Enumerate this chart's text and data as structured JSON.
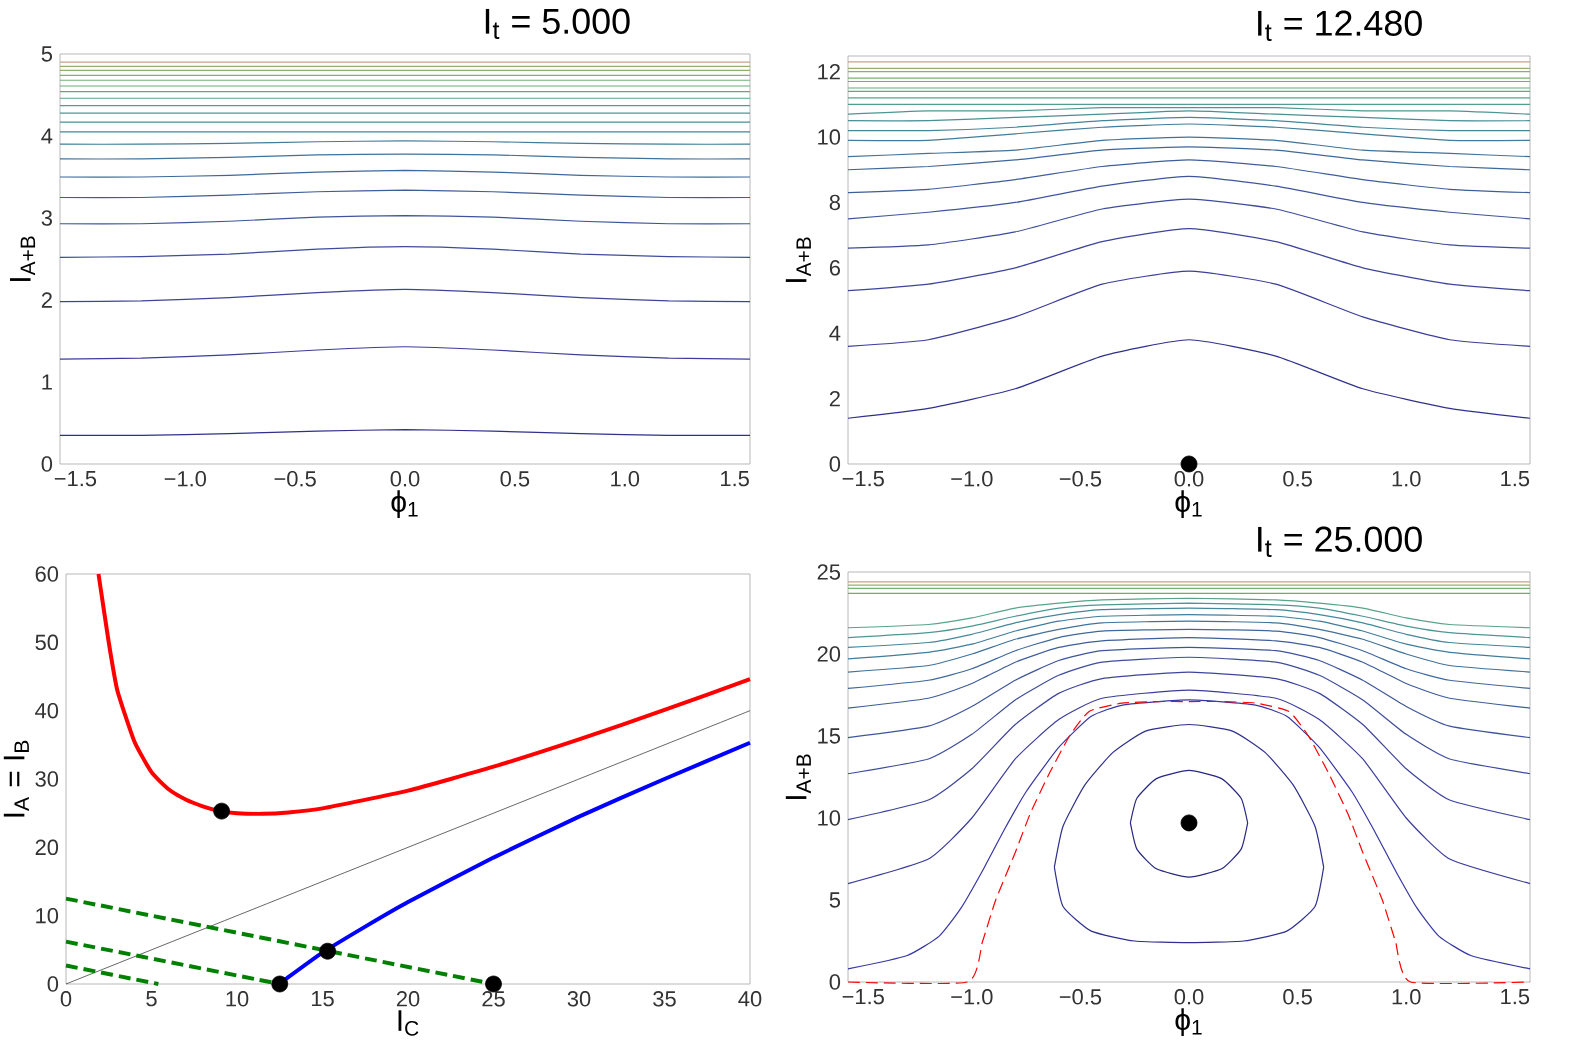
{
  "chart_data": [
    {
      "type": "line",
      "title": "I$_{t}$ = 5.000",
      "xlabel": "ϕ$_{1}$",
      "ylabel": "I$_{A+B}$",
      "xlim": [
        -1.57,
        1.57
      ],
      "ylim": [
        0,
        5
      ],
      "xticks": [
        {
          "value": -1.5,
          "label": "−1.5"
        },
        {
          "value": -1.0,
          "label": "−1.0"
        },
        {
          "value": -0.5,
          "label": "−0.5"
        },
        {
          "value": 0,
          "label": "0.0"
        },
        {
          "value": 0.5,
          "label": "0.5"
        },
        {
          "value": 1.0,
          "label": "1.0"
        },
        {
          "value": 1.5,
          "label": "1.5"
        }
      ],
      "yticks": [
        0,
        1,
        2,
        3,
        4,
        5
      ],
      "x": [
        -1.57,
        -1.2,
        -0.8,
        -0.4,
        0,
        0.4,
        0.8,
        1.2,
        1.57
      ],
      "series": [
        {
          "color": "#30308c",
          "values": [
            0.35,
            0.35,
            0.37,
            0.4,
            0.42,
            0.4,
            0.37,
            0.35,
            0.35
          ]
        },
        {
          "color": "#3c3c9a",
          "values": [
            1.28,
            1.29,
            1.33,
            1.39,
            1.43,
            1.39,
            1.33,
            1.29,
            1.28
          ]
        },
        {
          "color": "#3d449a",
          "values": [
            1.98,
            1.99,
            2.03,
            2.09,
            2.13,
            2.09,
            2.03,
            1.99,
            1.98
          ]
        },
        {
          "color": "#3d4c9a",
          "values": [
            2.52,
            2.53,
            2.56,
            2.62,
            2.65,
            2.62,
            2.56,
            2.53,
            2.52
          ]
        },
        {
          "color": "#3e559a",
          "values": [
            2.93,
            2.93,
            2.96,
            3.01,
            3.03,
            3.01,
            2.96,
            2.93,
            2.93
          ]
        },
        {
          "color": "#3e5e9a",
          "values": [
            3.25,
            3.25,
            3.28,
            3.32,
            3.34,
            3.32,
            3.28,
            3.25,
            3.25
          ]
        },
        {
          "color": "#3f689a",
          "values": [
            3.5,
            3.5,
            3.52,
            3.56,
            3.58,
            3.56,
            3.52,
            3.5,
            3.5
          ]
        },
        {
          "color": "#40729a",
          "values": [
            3.72,
            3.72,
            3.74,
            3.77,
            3.78,
            3.77,
            3.74,
            3.72,
            3.72
          ]
        },
        {
          "color": "#427c9a",
          "values": [
            3.9,
            3.9,
            3.91,
            3.93,
            3.94,
            3.93,
            3.91,
            3.9,
            3.9
          ]
        },
        {
          "color": "#458699",
          "x": [
            -1.57,
            1.57
          ],
          "values": [
            4.05,
            4.05
          ]
        },
        {
          "color": "#488f97",
          "x": [
            -1.57,
            1.57
          ],
          "values": [
            4.17,
            4.17
          ]
        },
        {
          "color": "#4c9794",
          "x": [
            -1.57,
            1.57
          ],
          "values": [
            4.28,
            4.28
          ]
        },
        {
          "color": "#519e8f",
          "x": [
            -1.57,
            1.57
          ],
          "values": [
            4.37,
            4.37
          ]
        },
        {
          "color": "#57a489",
          "x": [
            -1.57,
            1.57
          ],
          "values": [
            4.46,
            4.46
          ]
        },
        {
          "color": "#5ea982",
          "x": [
            -1.57,
            1.57
          ],
          "values": [
            4.54,
            4.54
          ]
        },
        {
          "color": "#66ad7b",
          "x": [
            -1.57,
            1.57
          ],
          "values": [
            4.61,
            4.61
          ]
        },
        {
          "color": "#70b075",
          "x": [
            -1.57,
            1.57
          ],
          "values": [
            4.68,
            4.68
          ]
        },
        {
          "color": "#7cb170",
          "x": [
            -1.57,
            1.57
          ],
          "values": [
            4.74,
            4.74
          ]
        },
        {
          "color": "#8ab06e",
          "x": [
            -1.57,
            1.57
          ],
          "values": [
            4.8,
            4.8
          ]
        },
        {
          "color": "#9cad70",
          "x": [
            -1.57,
            1.57
          ],
          "values": [
            4.85,
            4.85
          ]
        },
        {
          "color": "#c8a288",
          "x": [
            -1.57,
            1.57
          ],
          "values": [
            4.9,
            4.9
          ]
        }
      ]
    },
    {
      "type": "line",
      "title": "I$_{t}$ = 12.480",
      "xlabel": "ϕ$_{1}$",
      "ylabel": "I$_{A+B}$",
      "xlim": [
        -1.57,
        1.57
      ],
      "ylim": [
        0,
        12.48
      ],
      "xticks": [
        {
          "value": -1.5,
          "label": "−1.5"
        },
        {
          "value": -1.0,
          "label": "−1.0"
        },
        {
          "value": -0.5,
          "label": "−0.5"
        },
        {
          "value": 0,
          "label": "0.0"
        },
        {
          "value": 0.5,
          "label": "0.5"
        },
        {
          "value": 1.0,
          "label": "1.0"
        },
        {
          "value": 1.5,
          "label": "1.5"
        }
      ],
      "yticks": [
        0,
        2,
        4,
        6,
        8,
        10,
        12
      ],
      "x": [
        -1.57,
        -1.2,
        -0.8,
        -0.4,
        0,
        0.4,
        0.8,
        1.2,
        1.57
      ],
      "series": [
        {
          "color": "#30308c",
          "values": [
            1.4,
            1.7,
            2.3,
            3.3,
            3.8,
            3.3,
            2.3,
            1.7,
            1.4
          ]
        },
        {
          "color": "#3c3c9a",
          "values": [
            3.6,
            3.8,
            4.5,
            5.5,
            5.9,
            5.5,
            4.5,
            3.8,
            3.6
          ]
        },
        {
          "color": "#3d449a",
          "values": [
            5.3,
            5.5,
            6.0,
            6.8,
            7.2,
            6.8,
            6.0,
            5.5,
            5.3
          ]
        },
        {
          "color": "#3d4c9a",
          "values": [
            6.6,
            6.7,
            7.1,
            7.8,
            8.1,
            7.8,
            7.1,
            6.7,
            6.6
          ]
        },
        {
          "color": "#3e559a",
          "values": [
            7.5,
            7.7,
            8.0,
            8.5,
            8.8,
            8.5,
            8.0,
            7.7,
            7.5
          ]
        },
        {
          "color": "#3e5e9a",
          "values": [
            8.3,
            8.4,
            8.7,
            9.1,
            9.3,
            9.1,
            8.7,
            8.4,
            8.3
          ]
        },
        {
          "color": "#3f689a",
          "values": [
            9.0,
            9.1,
            9.3,
            9.6,
            9.7,
            9.6,
            9.3,
            9.1,
            9.0
          ]
        },
        {
          "color": "#40729a",
          "values": [
            9.4,
            9.5,
            9.6,
            9.9,
            10.0,
            9.9,
            9.6,
            9.5,
            9.4
          ]
        },
        {
          "color": "#427c9a",
          "values": [
            9.9,
            9.9,
            10.1,
            10.3,
            10.4,
            10.3,
            10.1,
            9.9,
            9.9
          ]
        },
        {
          "color": "#458699",
          "values": [
            10.2,
            10.2,
            10.3,
            10.5,
            10.6,
            10.5,
            10.3,
            10.2,
            10.2
          ]
        },
        {
          "color": "#488f97",
          "values": [
            10.5,
            10.5,
            10.6,
            10.7,
            10.8,
            10.7,
            10.6,
            10.5,
            10.5
          ]
        },
        {
          "color": "#4c9794",
          "values": [
            10.7,
            10.8,
            10.8,
            10.9,
            10.9,
            10.9,
            10.8,
            10.8,
            10.7
          ]
        },
        {
          "color": "#519e8f",
          "x": [
            -1.57,
            1.57
          ],
          "values": [
            11.0,
            11.0
          ]
        },
        {
          "color": "#57a489",
          "x": [
            -1.57,
            1.57
          ],
          "values": [
            11.2,
            11.2
          ]
        },
        {
          "color": "#5ea982",
          "x": [
            -1.57,
            1.57
          ],
          "values": [
            11.4,
            11.4
          ]
        },
        {
          "color": "#66ad7b",
          "x": [
            -1.57,
            1.57
          ],
          "values": [
            11.5,
            11.5
          ]
        },
        {
          "color": "#70b075",
          "x": [
            -1.57,
            1.57
          ],
          "values": [
            11.7,
            11.7
          ]
        },
        {
          "color": "#7cb170",
          "x": [
            -1.57,
            1.57
          ],
          "values": [
            11.8,
            11.8
          ]
        },
        {
          "color": "#8ab06e",
          "x": [
            -1.57,
            1.57
          ],
          "values": [
            12.0,
            12.0
          ]
        },
        {
          "color": "#9cad70",
          "x": [
            -1.57,
            1.57
          ],
          "values": [
            12.1,
            12.1
          ]
        },
        {
          "color": "#c8a288",
          "x": [
            -1.57,
            1.57
          ],
          "values": [
            12.3,
            12.3
          ]
        },
        {
          "type": "scatter",
          "marker": "circle",
          "color": "#000000",
          "x": [
            0
          ],
          "values": [
            0
          ]
        }
      ]
    },
    {
      "type": "line",
      "xlabel": "I$_{C}$",
      "ylabel": "I$_{A}$ = I$_{B}$",
      "xlim": [
        0,
        40
      ],
      "ylim": [
        0,
        60
      ],
      "xticks": [
        0,
        5,
        10,
        15,
        20,
        25,
        30,
        35,
        40
      ],
      "yticks": [
        0,
        10,
        20,
        30,
        40,
        50,
        60
      ],
      "series": [
        {
          "color": "#ff0000",
          "x": [
            1.9,
            2.5,
            3,
            4,
            5,
            6,
            7,
            8,
            9,
            10,
            11.5,
            13,
            15,
            20,
            25,
            30,
            35,
            40
          ],
          "values": [
            60,
            50,
            43,
            35.5,
            31,
            28.5,
            27,
            26,
            25.3,
            25,
            24.9,
            25.1,
            25.7,
            28.3,
            31.8,
            35.8,
            40.1,
            44.6
          ]
        },
        {
          "color": "#0000ff",
          "x": [
            12.5,
            13,
            15,
            17.5,
            20,
            25,
            30,
            35,
            40
          ],
          "values": [
            0,
            1,
            4.6,
            8.4,
            12,
            18.5,
            24.5,
            30,
            35.3
          ]
        },
        {
          "color": "#000000",
          "x": [
            0,
            40
          ],
          "values": [
            0,
            40
          ]
        },
        {
          "color": "#008000",
          "line_style": "dashed",
          "x": [
            0,
            25
          ],
          "values": [
            12.5,
            0
          ]
        },
        {
          "color": "#008000",
          "line_style": "dashed",
          "x": [
            0,
            12.5
          ],
          "values": [
            6.2,
            0
          ]
        },
        {
          "color": "#008000",
          "line_style": "dashed",
          "x": [
            0,
            5.4
          ],
          "values": [
            2.7,
            0
          ]
        },
        {
          "type": "scatter",
          "marker": "circle",
          "color": "#000000",
          "x": [
            9.1,
            15.3,
            12.5,
            25
          ],
          "values": [
            25.3,
            4.8,
            0,
            0
          ]
        }
      ]
    },
    {
      "type": "line",
      "title": "I$_{t}$ = 25.000",
      "xlabel": "ϕ$_{1}$",
      "ylabel": "I$_{A+B}$",
      "xlim": [
        -1.57,
        1.57
      ],
      "ylim": [
        0,
        25
      ],
      "xticks": [
        {
          "value": -1.5,
          "label": "−1.5"
        },
        {
          "value": -1.0,
          "label": "−1.0"
        },
        {
          "value": -0.5,
          "label": "−0.5"
        },
        {
          "value": 0,
          "label": "0.0"
        },
        {
          "value": 0.5,
          "label": "0.5"
        },
        {
          "value": 1.0,
          "label": "1.0"
        },
        {
          "value": 1.5,
          "label": "1.5"
        }
      ],
      "yticks": [
        0,
        5,
        10,
        15,
        20,
        25
      ],
      "x": [
        -1.57,
        -1.2,
        -1.0,
        -0.8,
        -0.6,
        -0.4,
        0,
        0.4,
        0.6,
        0.8,
        1.0,
        1.2,
        1.57
      ],
      "series": [
        {
          "color": "#26267e",
          "x": [
            -0.27,
            -0.24,
            -0.15,
            0,
            0.15,
            0.24,
            0.27
          ],
          "values": [
            9.7,
            11.2,
            12.4,
            12.9,
            12.4,
            11.2,
            9.7
          ]
        },
        {
          "color": "#27277f",
          "x": [
            -0.27,
            -0.24,
            -0.15,
            0,
            0.15,
            0.24,
            0.27
          ],
          "values": [
            9.7,
            8.1,
            6.9,
            6.4,
            6.9,
            8.1,
            9.7
          ]
        },
        {
          "color": "#2e2e8c",
          "x": [
            -0.62,
            -0.58,
            -0.48,
            -0.35,
            -0.2,
            0,
            0.2,
            0.35,
            0.48,
            0.58,
            0.62
          ],
          "values": [
            7,
            9.5,
            12,
            14,
            15.3,
            15.7,
            15.3,
            14,
            12,
            9.5,
            7
          ]
        },
        {
          "color": "#2f2f8d",
          "x": [
            -0.62,
            -0.58,
            -0.45,
            -0.25,
            0,
            0.25,
            0.45,
            0.58,
            0.62
          ],
          "values": [
            7,
            4.6,
            3.1,
            2.5,
            2.4,
            2.5,
            3.1,
            4.6,
            7
          ]
        },
        {
          "color": "#3636a4",
          "x": [
            -1.57,
            -1.3,
            -1.15,
            -1.05,
            -0.95,
            -0.85,
            -0.75,
            -0.6,
            -0.45,
            -0.3,
            0,
            0.3,
            0.45,
            0.6,
            0.75,
            0.85,
            0.95,
            1.05,
            1.15,
            1.3,
            1.57
          ],
          "values": [
            0.8,
            1.6,
            2.8,
            4.5,
            6.8,
            9.3,
            11.6,
            14.3,
            16.2,
            16.9,
            17.2,
            16.9,
            16.2,
            14.3,
            11.6,
            9.3,
            6.8,
            4.5,
            2.8,
            1.6,
            0.8
          ]
        },
        {
          "color": "#3c3c9a",
          "values": [
            6.0,
            7.5,
            10.0,
            13.6,
            16.0,
            17.3,
            17.8,
            17.3,
            16.0,
            13.6,
            10.0,
            7.5,
            6.0
          ]
        },
        {
          "color": "#3d449a",
          "values": [
            9.9,
            11.1,
            13.0,
            15.7,
            17.6,
            18.5,
            18.9,
            18.5,
            17.6,
            15.7,
            13.0,
            11.1,
            9.9
          ]
        },
        {
          "color": "#3d4c9a",
          "values": [
            12.7,
            13.6,
            15.1,
            17.2,
            18.7,
            19.5,
            19.8,
            19.5,
            18.7,
            17.2,
            15.1,
            13.6,
            12.7
          ]
        },
        {
          "color": "#3e559a",
          "values": [
            14.9,
            15.6,
            16.8,
            18.4,
            19.6,
            20.2,
            20.4,
            20.2,
            19.6,
            18.4,
            16.8,
            15.6,
            14.9
          ]
        },
        {
          "color": "#3e5e9a",
          "values": [
            16.7,
            17.3,
            18.2,
            19.5,
            20.4,
            20.8,
            21.0,
            20.8,
            20.4,
            19.5,
            18.2,
            17.3,
            16.7
          ]
        },
        {
          "color": "#3f689a",
          "values": [
            17.9,
            18.4,
            19.1,
            20.2,
            21.0,
            21.4,
            21.5,
            21.4,
            21.0,
            20.2,
            19.1,
            18.4,
            17.9
          ]
        },
        {
          "color": "#40729a",
          "values": [
            18.9,
            19.3,
            20.0,
            20.9,
            21.5,
            21.9,
            22.0,
            21.9,
            21.5,
            20.9,
            20.0,
            19.3,
            18.9
          ]
        },
        {
          "color": "#427c9a",
          "values": [
            19.7,
            20.1,
            20.6,
            21.4,
            22.0,
            22.3,
            22.4,
            22.3,
            22.0,
            21.4,
            20.6,
            20.1,
            19.7
          ]
        },
        {
          "color": "#458699",
          "values": [
            20.4,
            20.7,
            21.2,
            21.9,
            22.4,
            22.7,
            22.8,
            22.7,
            22.4,
            21.9,
            21.2,
            20.7,
            20.4
          ]
        },
        {
          "color": "#4c9794",
          "values": [
            21.0,
            21.3,
            21.7,
            22.3,
            22.8,
            23.0,
            23.1,
            23.0,
            22.8,
            22.3,
            21.7,
            21.3,
            21.0
          ]
        },
        {
          "color": "#57a489",
          "values": [
            21.6,
            21.8,
            22.2,
            22.8,
            23.1,
            23.3,
            23.4,
            23.3,
            23.1,
            22.8,
            22.2,
            21.8,
            21.6
          ]
        },
        {
          "color": "#66ad7b",
          "x": [
            -1.57,
            1.57
          ],
          "values": [
            23.7,
            23.7
          ]
        },
        {
          "color": "#7cb170",
          "x": [
            -1.57,
            1.57
          ],
          "values": [
            24.0,
            24.0
          ]
        },
        {
          "color": "#9cad70",
          "x": [
            -1.57,
            1.57
          ],
          "values": [
            24.2,
            24.2
          ]
        },
        {
          "color": "#c8a288",
          "x": [
            -1.57,
            1.57
          ],
          "values": [
            24.4,
            24.4
          ]
        },
        {
          "color": "#ff0000",
          "line_style": "dashed",
          "x": [
            -1.57,
            -1.02,
            -0.95,
            -0.89,
            -0.8,
            -0.73,
            -0.64,
            -0.55,
            -0.46,
            -0.31,
            -0.15,
            0,
            0.15,
            0.31,
            0.46,
            0.55,
            0.64,
            0.73,
            0.8,
            0.89,
            0.95,
            1.02,
            1.57
          ],
          "values": [
            0,
            0,
            2.5,
            5,
            7.9,
            10.3,
            12.8,
            15,
            16.5,
            17,
            17.1,
            17.1,
            17.1,
            17,
            16.5,
            15,
            12.8,
            10.3,
            7.9,
            5,
            2.5,
            0,
            0
          ]
        },
        {
          "type": "scatter",
          "marker": "circle",
          "color": "#000000",
          "x": [
            0
          ],
          "values": [
            9.7
          ]
        }
      ]
    }
  ]
}
